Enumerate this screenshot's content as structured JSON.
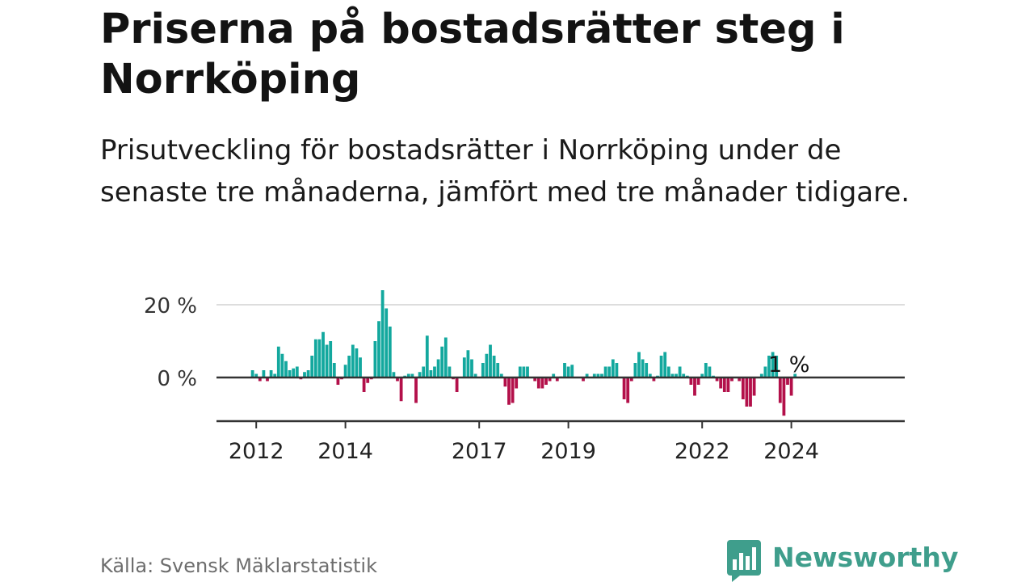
{
  "title": "Priserna på bostadsrätter steg i Norrköping",
  "subtitle": "Prisutveckling för bostadsrätter i Norrköping under de senaste tre månaderna, jämfört med tre månader tidigare.",
  "source": "Källa: Svensk Mäklarstatistik",
  "brand": {
    "name": "Newsworthy",
    "color": "#3f9e8c",
    "icon": "newsworthy-logo-icon"
  },
  "colors": {
    "positive": "#13a89e",
    "negative": "#b3104a",
    "gridline": "#dddddd",
    "axis": "#333333",
    "text": "#131313"
  },
  "chart_data": {
    "type": "bar",
    "ylabel": "",
    "xlabel": "",
    "ylim": [
      -12,
      24
    ],
    "y_ticks": [
      {
        "value": 0,
        "label": "0 %"
      },
      {
        "value": 20,
        "label": "20 %"
      }
    ],
    "x_ticks": [
      {
        "index": 2,
        "label": "2012"
      },
      {
        "index": 26,
        "label": "2014"
      },
      {
        "index": 62,
        "label": "2017"
      },
      {
        "index": 86,
        "label": "2019"
      },
      {
        "index": 122,
        "label": "2022"
      },
      {
        "index": 146,
        "label": "2024"
      }
    ],
    "annotation": {
      "index": 145,
      "label": "1 %"
    },
    "values": [
      0.2,
      2,
      1,
      -1,
      2,
      -1,
      2,
      1,
      8.5,
      6.5,
      4.5,
      2,
      2.5,
      3,
      -0.5,
      1.5,
      2,
      6,
      10.5,
      10.5,
      12.5,
      9,
      10,
      4,
      -2,
      -0.5,
      3.5,
      6,
      9,
      8,
      5.5,
      -4,
      -1.5,
      -0.5,
      10,
      15.5,
      24,
      19,
      14,
      1.5,
      -1,
      -6.5,
      0.5,
      1,
      1,
      -7,
      1.5,
      3,
      11.5,
      2,
      3,
      5,
      8.5,
      11,
      3,
      -0.5,
      -4,
      0.2,
      5.5,
      7.5,
      5,
      1,
      0.2,
      4,
      6.5,
      9,
      6,
      4,
      1,
      -2.5,
      -7.5,
      -7,
      -3,
      3,
      3,
      3,
      0.2,
      -1,
      -3,
      -3,
      -2,
      -1,
      1,
      -1,
      0.3,
      4,
      3,
      3.5,
      0.2,
      0.2,
      -1,
      1,
      0.2,
      1,
      1,
      1,
      3,
      3,
      5,
      4,
      0.2,
      -6,
      -7,
      -1,
      4,
      7,
      5,
      4,
      1,
      -1,
      0.5,
      6,
      7,
      3,
      1,
      1,
      3,
      1,
      0.5,
      -2,
      -5,
      -2,
      1,
      4,
      3,
      0.5,
      -1,
      -3,
      -4,
      -4,
      -1,
      0.2,
      -1,
      -6,
      -8,
      -8,
      -5,
      0.2,
      1,
      3,
      6,
      7,
      6,
      -7,
      -10.5,
      -2,
      -5,
      1
    ]
  }
}
